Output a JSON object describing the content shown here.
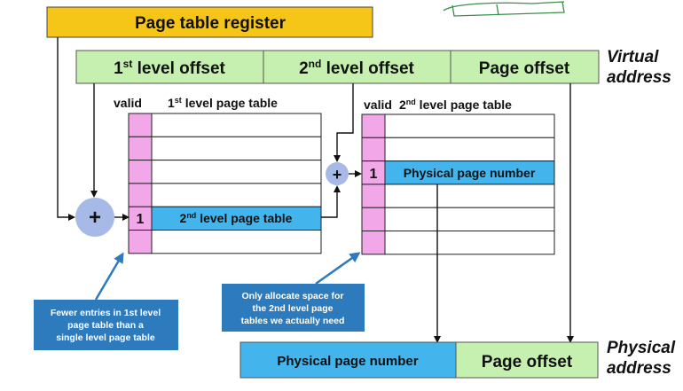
{
  "page_table_register": "Page table register",
  "virtual_address": {
    "field1": {
      "main": "1",
      "sup": "st",
      "rest": " level offset"
    },
    "field2": {
      "main": "2",
      "sup": "nd",
      "rest": " level offset"
    },
    "field3": "Page offset",
    "label_line1": "Virtual",
    "label_line2": "address"
  },
  "first_level_table": {
    "valid_label": "valid",
    "title": {
      "main": "1",
      "sup": "st",
      "rest": " level page table"
    },
    "entry_valid": "1",
    "entry_label": {
      "main": "2",
      "sup": "nd",
      "rest": " level page table"
    }
  },
  "second_level_table": {
    "valid_label": "valid",
    "title": {
      "main": "2",
      "sup": "nd",
      "rest": " level page table"
    },
    "entry_valid": "1",
    "entry_label": "Physical page number"
  },
  "adder_symbol": "+",
  "callout_left": [
    "Fewer entries in 1st level",
    "page table than a",
    "single level page table"
  ],
  "callout_right": [
    "Only allocate space for",
    "the 2nd level page",
    "tables we actually need"
  ],
  "physical_address": {
    "field1": "Physical page number",
    "field2": "Page offset",
    "label_line1": "Physical",
    "label_line2": "address"
  },
  "colors": {
    "register_fill": "#f5c518",
    "green_fill": "#c6f0b0",
    "blue_fill": "#44b5ec",
    "pink_fill": "#f2a8e8",
    "adder_fill": "#a7b9e6",
    "callout_fill": "#2d7bbd"
  }
}
